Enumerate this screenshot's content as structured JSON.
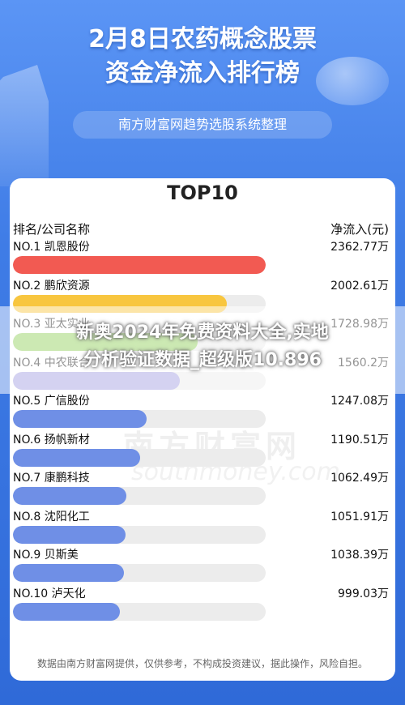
{
  "header": {
    "title_line1": "2月8日农药概念股票",
    "title_line2": "资金净流入排行榜",
    "subtitle": "南方财富网趋势选股系统整理"
  },
  "card": {
    "title": "TOP10",
    "col_left": "排名/公司名称",
    "col_right": "净流入(元)"
  },
  "watermark": {
    "logo_text": "南方财富网",
    "url_text": "southmoney.com"
  },
  "footer": "数据由南方财富网提供，仅供参考，不构成投资建议，据此操作，风险自担。",
  "overlay": {
    "line1": "新奥2024年免费资料大全,实地",
    "line2": "分析验证数据_超级版10.896"
  },
  "chart_data": {
    "type": "bar",
    "title": "TOP10",
    "categories": [
      "NO.1 凯恩股份",
      "NO.2 鹏欣资源",
      "NO.3 亚太实业",
      "NO.4 中农联合",
      "NO.5 广信股份",
      "NO.6 扬帆新材",
      "NO.7 康鹏科技",
      "NO.8 沈阳化工",
      "NO.9 贝斯美",
      "NO.10 泸天化"
    ],
    "values": [
      2362.77,
      2002.61,
      1728.98,
      1560.2,
      1247.08,
      1190.51,
      1062.49,
      1051.91,
      1038.39,
      999.03
    ],
    "value_labels": [
      "2362.77万",
      "2002.61万",
      "1728.98万",
      "1560.2万",
      "1247.08万",
      "1190.51万",
      "1062.49万",
      "1051.91万",
      "1038.39万",
      "999.03万"
    ],
    "bar_colors": [
      "#f25a52",
      "#f8c63f",
      "#8fcf58",
      "#a09ce0",
      "#6f8fe6",
      "#6f8fe6",
      "#6f8fe6",
      "#6f8fe6",
      "#6f8fe6",
      "#6f8fe6"
    ],
    "max_value": 2362.77
  }
}
